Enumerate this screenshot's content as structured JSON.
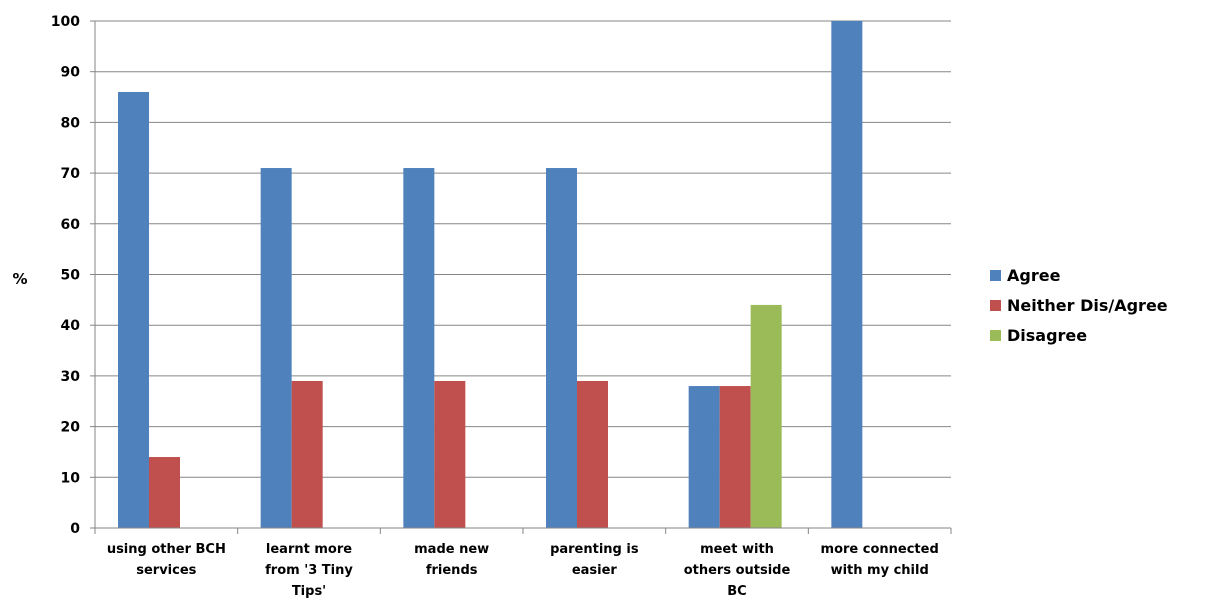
{
  "chart_data": {
    "type": "bar",
    "ylabel": "%",
    "ylim": [
      0,
      100
    ],
    "yticks": [
      "0",
      "10",
      "20",
      "30",
      "40",
      "50",
      "60",
      "70",
      "80",
      "90",
      "100"
    ],
    "grid": true,
    "legend_position": "right",
    "categories": [
      [
        "using other BCH",
        "services"
      ],
      [
        "learnt more",
        "from '3 Tiny",
        "Tips'"
      ],
      [
        "made new",
        "friends"
      ],
      [
        "parenting is",
        "easier"
      ],
      [
        "meet with",
        "others outside",
        "BC"
      ],
      [
        "more connected",
        "with my child"
      ]
    ],
    "series": [
      {
        "name": "Agree",
        "color": "#4F81BD",
        "values": [
          86,
          71,
          71,
          71,
          28,
          100
        ]
      },
      {
        "name": "Neither Dis/Agree",
        "color": "#C0504D",
        "values": [
          14,
          29,
          29,
          29,
          28,
          0
        ]
      },
      {
        "name": "Disagree",
        "color": "#9BBB59",
        "values": [
          0,
          0,
          0,
          0,
          44,
          0
        ]
      }
    ]
  }
}
